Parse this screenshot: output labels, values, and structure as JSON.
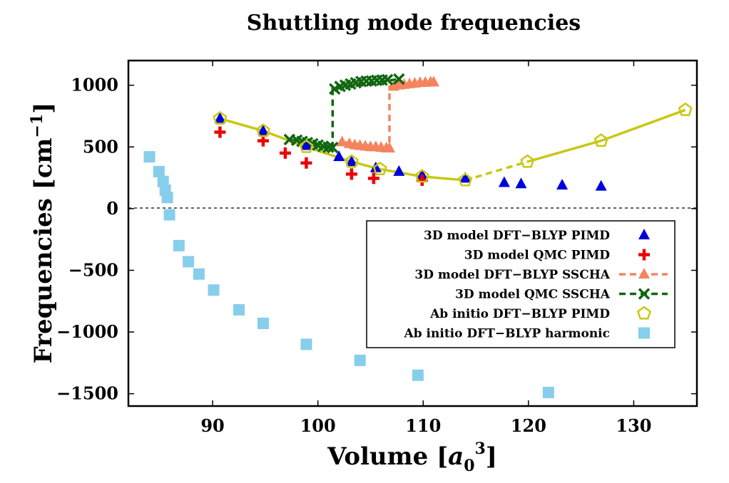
{
  "chart_data": {
    "type": "scatter",
    "title": "Shuttling mode frequencies",
    "xlabel": "Volume [a0^3]",
    "ylabel": "Frequencies [cm^-1]",
    "xlim": [
      82,
      136
    ],
    "ylim": [
      -1600,
      1200
    ],
    "xticks": [
      90,
      100,
      110,
      120,
      130
    ],
    "yticks": [
      -1500,
      -1000,
      -500,
      0,
      500,
      1000
    ],
    "x_tick_labels": [
      "90",
      "100",
      "110",
      "120",
      "130"
    ],
    "y_tick_labels": [
      "−1500",
      "−1000",
      "−500",
      "0",
      "500",
      "1000"
    ],
    "zero_line": true,
    "grid": false,
    "legend_position": "center-right",
    "series": [
      {
        "name": "3D model DFT−BLYP PIMD",
        "marker": "triangle",
        "color": "#0000dd",
        "points": [
          [
            90.7,
            730
          ],
          [
            94.8,
            630
          ],
          [
            98.9,
            510
          ],
          [
            102.0,
            420
          ],
          [
            103.2,
            380
          ],
          [
            105.5,
            330
          ],
          [
            107.7,
            300
          ],
          [
            109.9,
            270
          ],
          [
            114.0,
            245
          ],
          [
            117.7,
            210
          ],
          [
            119.3,
            200
          ],
          [
            123.2,
            190
          ],
          [
            126.9,
            180
          ]
        ]
      },
      {
        "name": "3D model QMC PIMD",
        "marker": "plus",
        "color": "#ee0000",
        "points": [
          [
            90.7,
            620
          ],
          [
            94.8,
            550
          ],
          [
            96.9,
            450
          ],
          [
            98.9,
            370
          ],
          [
            103.2,
            280
          ],
          [
            105.3,
            245
          ],
          [
            109.9,
            230
          ]
        ]
      },
      {
        "name": "3D model DFT−BLYP SSCHA",
        "marker": "triangle",
        "color": "#f4845f",
        "line": "dashed",
        "points": [
          [
            102.3,
            540
          ],
          [
            103.0,
            525
          ],
          [
            103.5,
            515
          ],
          [
            104.0,
            510
          ],
          [
            104.5,
            505
          ],
          [
            105.0,
            500
          ],
          [
            105.5,
            500
          ],
          [
            106.0,
            495
          ],
          [
            106.5,
            490
          ],
          [
            106.8,
            490
          ],
          [
            107.2,
            990
          ],
          [
            107.7,
            1000
          ],
          [
            108.2,
            1005
          ],
          [
            108.7,
            1010
          ],
          [
            109.2,
            1015
          ],
          [
            109.7,
            1020
          ],
          [
            110.2,
            1022
          ],
          [
            110.7,
            1025
          ],
          [
            111.0,
            1025
          ]
        ],
        "line_points": [
          [
            102.3,
            540
          ],
          [
            106.8,
            490
          ],
          [
            106.8,
            990
          ],
          [
            111.0,
            1025
          ]
        ]
      },
      {
        "name": "3D model QMC SSCHA",
        "marker": "x",
        "color": "#116611",
        "line": "dashed",
        "points": [
          [
            97.3,
            560
          ],
          [
            98.0,
            555
          ],
          [
            98.5,
            545
          ],
          [
            99.0,
            535
          ],
          [
            99.5,
            525
          ],
          [
            100.0,
            515
          ],
          [
            100.5,
            505
          ],
          [
            101.0,
            498
          ],
          [
            101.4,
            495
          ],
          [
            101.6,
            970
          ],
          [
            102.1,
            990
          ],
          [
            102.6,
            1000
          ],
          [
            103.1,
            1010
          ],
          [
            103.6,
            1020
          ],
          [
            104.1,
            1030
          ],
          [
            104.6,
            1033
          ],
          [
            105.1,
            1035
          ],
          [
            105.6,
            1040
          ],
          [
            106.1,
            1042
          ],
          [
            106.6,
            1045
          ],
          [
            107.7,
            1050
          ]
        ],
        "line_points": [
          [
            97.3,
            560
          ],
          [
            101.4,
            495
          ],
          [
            101.4,
            970
          ],
          [
            107.7,
            1050
          ]
        ]
      },
      {
        "name": "Ab initio DFT−BLYP PIMD",
        "marker": "pentagon",
        "color": "#c8c814",
        "line": "solid-dashed",
        "points": [
          [
            90.7,
            730
          ],
          [
            94.8,
            630
          ],
          [
            98.9,
            500
          ],
          [
            103.2,
            380
          ],
          [
            105.9,
            320
          ],
          [
            109.9,
            260
          ],
          [
            114.0,
            230
          ],
          [
            119.9,
            380
          ],
          [
            126.9,
            550
          ],
          [
            134.9,
            800
          ]
        ]
      },
      {
        "name": "Ab initio DFT−BLYP harmonic",
        "marker": "square",
        "color": "#87ceeb",
        "points": [
          [
            84.0,
            420
          ],
          [
            84.9,
            300
          ],
          [
            85.3,
            220
          ],
          [
            85.5,
            150
          ],
          [
            85.7,
            90
          ],
          [
            85.9,
            -50
          ],
          [
            86.8,
            -300
          ],
          [
            87.7,
            -430
          ],
          [
            88.7,
            -530
          ],
          [
            90.1,
            -660
          ],
          [
            92.5,
            -820
          ],
          [
            94.8,
            -930
          ],
          [
            98.9,
            -1100
          ],
          [
            104.0,
            -1230
          ],
          [
            109.5,
            -1350
          ],
          [
            121.9,
            -1490
          ]
        ]
      }
    ]
  }
}
